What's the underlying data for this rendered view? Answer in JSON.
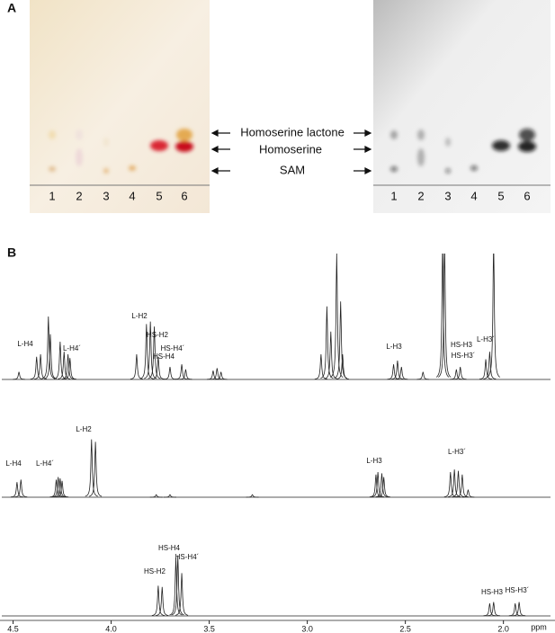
{
  "panel_a": {
    "label": "A",
    "lanes": [
      "1",
      "2",
      "3",
      "4",
      "5",
      "6"
    ],
    "compounds": [
      "Homoserine lactone",
      "Homoserine",
      "SAM"
    ]
  },
  "panel_b": {
    "label": "B",
    "axis": {
      "lim": [
        4.53,
        1.76
      ],
      "ticks": [
        4.5,
        {
          "value": 4,
          "label": "4.0"
        },
        3.5,
        {
          "value": 3,
          "label": "3.0"
        },
        2.5,
        {
          "value": 2,
          "label": "2.0"
        }
      ],
      "unit": "ppm"
    },
    "spectra": [
      {
        "labels": [
          "L-H4",
          "L-H4´",
          "L-H2",
          "HS-H2",
          "HS-H4´",
          "HS-H4",
          "L-H3",
          "HS-H3",
          "HS-H3´",
          "L-H3´"
        ],
        "peaks": [
          {
            "ppm": 4.47,
            "intensity": 6
          },
          {
            "ppm": 4.38,
            "intensity": 18
          },
          {
            "ppm": 4.36,
            "intensity": 20
          },
          {
            "ppm": 4.32,
            "intensity": 50
          },
          {
            "ppm": 4.31,
            "intensity": 36
          },
          {
            "ppm": 4.26,
            "intensity": 30
          },
          {
            "ppm": 4.24,
            "intensity": 22
          },
          {
            "ppm": 4.22,
            "intensity": 20
          },
          {
            "ppm": 4.21,
            "intensity": 17
          },
          {
            "ppm": 3.87,
            "intensity": 20
          },
          {
            "ppm": 3.82,
            "intensity": 44
          },
          {
            "ppm": 3.8,
            "intensity": 46
          },
          {
            "ppm": 3.78,
            "intensity": 42
          },
          {
            "ppm": 3.76,
            "intensity": 18
          },
          {
            "ppm": 3.7,
            "intensity": 10
          },
          {
            "ppm": 3.64,
            "intensity": 12
          },
          {
            "ppm": 3.62,
            "intensity": 8
          },
          {
            "ppm": 3.48,
            "intensity": 7
          },
          {
            "ppm": 3.46,
            "intensity": 9
          },
          {
            "ppm": 3.44,
            "intensity": 6
          },
          {
            "ppm": 2.93,
            "intensity": 20
          },
          {
            "ppm": 2.9,
            "intensity": 58
          },
          {
            "ppm": 2.88,
            "intensity": 38
          },
          {
            "ppm": 2.85,
            "intensity": 100
          },
          {
            "ppm": 2.83,
            "intensity": 62
          },
          {
            "ppm": 2.82,
            "intensity": 20
          },
          {
            "ppm": 2.56,
            "intensity": 12
          },
          {
            "ppm": 2.54,
            "intensity": 15
          },
          {
            "ppm": 2.52,
            "intensity": 10
          },
          {
            "ppm": 2.41,
            "intensity": 6
          },
          {
            "ppm": 2.31,
            "intensity": 110
          },
          {
            "ppm": 2.3,
            "intensity": 110
          },
          {
            "ppm": 2.24,
            "intensity": 8
          },
          {
            "ppm": 2.22,
            "intensity": 10
          },
          {
            "ppm": 2.09,
            "intensity": 16
          },
          {
            "ppm": 2.07,
            "intensity": 22
          },
          {
            "ppm": 2.05,
            "intensity": 110
          }
        ]
      },
      {
        "labels": [
          "L-H4",
          "L-H4´",
          "L-H2",
          "L-H3",
          "L-H3´"
        ],
        "peaks": [
          {
            "ppm": 4.48,
            "intensity": 12
          },
          {
            "ppm": 4.46,
            "intensity": 14
          },
          {
            "ppm": 4.28,
            "intensity": 14
          },
          {
            "ppm": 4.27,
            "intensity": 16
          },
          {
            "ppm": 4.26,
            "intensity": 15
          },
          {
            "ppm": 4.25,
            "intensity": 13
          },
          {
            "ppm": 4.1,
            "intensity": 46
          },
          {
            "ppm": 4.08,
            "intensity": 44
          },
          {
            "ppm": 3.77,
            "intensity": 2
          },
          {
            "ppm": 3.7,
            "intensity": 2
          },
          {
            "ppm": 3.28,
            "intensity": 2
          },
          {
            "ppm": 2.65,
            "intensity": 18
          },
          {
            "ppm": 2.64,
            "intensity": 20
          },
          {
            "ppm": 2.62,
            "intensity": 19
          },
          {
            "ppm": 2.61,
            "intensity": 16
          },
          {
            "ppm": 2.27,
            "intensity": 20
          },
          {
            "ppm": 2.25,
            "intensity": 22
          },
          {
            "ppm": 2.23,
            "intensity": 21
          },
          {
            "ppm": 2.21,
            "intensity": 18
          },
          {
            "ppm": 2.18,
            "intensity": 6
          }
        ]
      },
      {
        "labels": [
          "HS-H4",
          "HS-H4´",
          "HS-H2",
          "HS-H3",
          "HS-H3´"
        ],
        "peaks": [
          {
            "ppm": 3.76,
            "intensity": 24
          },
          {
            "ppm": 3.74,
            "intensity": 23
          },
          {
            "ppm": 3.67,
            "intensity": 46
          },
          {
            "ppm": 3.66,
            "intensity": 48
          },
          {
            "ppm": 3.64,
            "intensity": 34
          },
          {
            "ppm": 2.07,
            "intensity": 10
          },
          {
            "ppm": 2.05,
            "intensity": 11
          },
          {
            "ppm": 1.94,
            "intensity": 10
          },
          {
            "ppm": 1.92,
            "intensity": 11
          }
        ]
      }
    ]
  }
}
